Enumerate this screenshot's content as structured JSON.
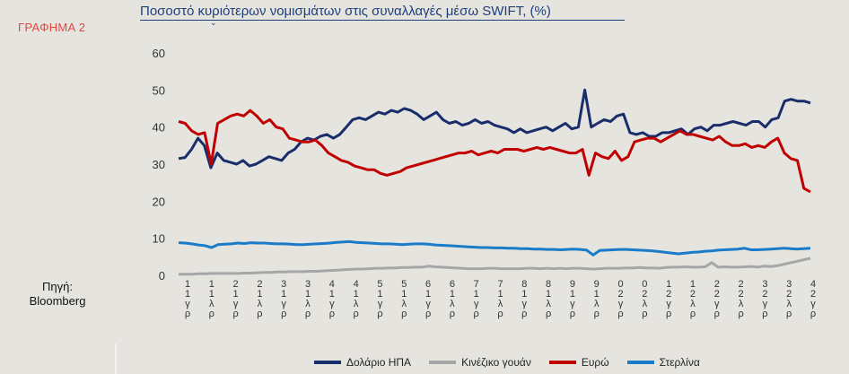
{
  "sidebar": {
    "label": "ΓΡΑΦΗΜΑ 2",
    "source_line1": "Πηγή:",
    "source_line2": "Bloomberg"
  },
  "chart_data": {
    "type": "line",
    "title": "Ποσοστό κυριότερων νομισμάτων στις συναλλαγές μέσω SWIFT, (%)",
    "xlabel": "",
    "ylabel": "",
    "ylim": [
      0,
      60
    ],
    "yticks": [
      0,
      10,
      20,
      30,
      40,
      50,
      60
    ],
    "x_tick_labels": [
      "1 Ιαν",
      "1 Ιουλ",
      "2 Ιαν",
      "2 Ιουλ",
      "3 Ιαν",
      "3 Ιουλ",
      "4 Ιαν",
      "4 Ιουλ",
      "5 Ιαν",
      "5 Ιουλ",
      "6 Ιαν",
      "6 Ιουλ",
      "7 Ιαν",
      "7 Ιουλ",
      "8 Ιαν",
      "8 Ιουλ",
      "9 Ιαν",
      "9 Ιουλ",
      "0 Ιαν",
      "0 Ιουλ",
      "1 Ιαν",
      "1 Ιουλ",
      "2 Ιαν",
      "2 Ιουλ",
      "3 Ιαν",
      "3 Ιουλ",
      "4 Ιαν"
    ],
    "x_tick_glyphs": [
      [
        "1",
        "1",
        "γ",
        "ρ"
      ],
      [
        "1",
        "1",
        "λ",
        "ρ"
      ],
      [
        "2",
        "1",
        "γ",
        "ρ"
      ],
      [
        "2",
        "1",
        "λ",
        "ρ"
      ],
      [
        "3",
        "1",
        "γ",
        "ρ"
      ],
      [
        "3",
        "1",
        "λ",
        "ρ"
      ],
      [
        "4",
        "1",
        "γ",
        "ρ"
      ],
      [
        "4",
        "1",
        "λ",
        "ρ"
      ],
      [
        "5",
        "1",
        "γ",
        "ρ"
      ],
      [
        "5",
        "1",
        "λ",
        "ρ"
      ],
      [
        "6",
        "1",
        "γ",
        "ρ"
      ],
      [
        "6",
        "1",
        "λ",
        "ρ"
      ],
      [
        "7",
        "1",
        "γ",
        "ρ"
      ],
      [
        "7",
        "1",
        "λ",
        "ρ"
      ],
      [
        "8",
        "1",
        "γ",
        "ρ"
      ],
      [
        "8",
        "1",
        "λ",
        "ρ"
      ],
      [
        "9",
        "1",
        "γ",
        "ρ"
      ],
      [
        "9",
        "1",
        "λ",
        "ρ"
      ],
      [
        "0",
        "2",
        "γ",
        "ρ"
      ],
      [
        "0",
        "2",
        "λ",
        "ρ"
      ],
      [
        "1",
        "2",
        "γ",
        "ρ"
      ],
      [
        "1",
        "2",
        "λ",
        "ρ"
      ],
      [
        "2",
        "2",
        "γ",
        "ρ"
      ],
      [
        "2",
        "2",
        "λ",
        "ρ"
      ],
      [
        "3",
        "2",
        "γ",
        "ρ"
      ],
      [
        "3",
        "2",
        "λ",
        "ρ"
      ],
      [
        "4",
        "2",
        "γ",
        "ρ"
      ]
    ],
    "grid": false,
    "legend_position": "bottom",
    "series": [
      {
        "name": "Δολάριο ΗΠΑ",
        "color": "#1a2d6b",
        "values": [
          31.5,
          31.8,
          34,
          37,
          35,
          29,
          33,
          31,
          30.5,
          30,
          31,
          29.5,
          30,
          31,
          32,
          31.5,
          31,
          33,
          34,
          36,
          37,
          36.5,
          37.5,
          38,
          37,
          38,
          40,
          42,
          42.5,
          42,
          43,
          44,
          43.5,
          44.5,
          44,
          45,
          44.5,
          43.5,
          42,
          43,
          44,
          42,
          41,
          41.5,
          40.5,
          41,
          42,
          41,
          41.5,
          40.5,
          40,
          39.5,
          38.5,
          39.5,
          38.5,
          39,
          39.5,
          40,
          39,
          40,
          41,
          39.5,
          40,
          50,
          40,
          41,
          42,
          41.5,
          43,
          43.5,
          38.5,
          38,
          38.5,
          37.5,
          37.5,
          38.5,
          38.5,
          39,
          39.5,
          38,
          39.5,
          40,
          39,
          40.5,
          40.5,
          41,
          41.5,
          41,
          40.5,
          41.5,
          41.5,
          40,
          42,
          42.5,
          47,
          47.5,
          47,
          47,
          46.5
        ]
      },
      {
        "name": "Κινέζικο γουάν",
        "color": "#a6a6a6",
        "values": [
          0.3,
          0.3,
          0.3,
          0.4,
          0.4,
          0.5,
          0.5,
          0.5,
          0.5,
          0.5,
          0.6,
          0.6,
          0.7,
          0.8,
          0.8,
          0.9,
          0.9,
          1,
          1,
          1,
          1.1,
          1.1,
          1.2,
          1.3,
          1.4,
          1.5,
          1.6,
          1.7,
          1.7,
          1.8,
          1.9,
          1.9,
          2,
          2,
          2.1,
          2.1,
          2.2,
          2.2,
          2.5,
          2.3,
          2.2,
          2.1,
          2,
          1.9,
          1.8,
          1.8,
          1.8,
          1.9,
          1.9,
          1.8,
          1.8,
          1.8,
          1.8,
          1.9,
          1.9,
          1.8,
          1.9,
          1.8,
          1.9,
          1.8,
          1.9,
          1.9,
          1.8,
          1.7,
          1.8,
          1.9,
          1.9,
          1.9,
          2,
          2,
          2.1,
          2,
          2,
          1.9,
          2.1,
          2.2,
          2.2,
          2.3,
          2.2,
          2.2,
          2.3,
          3.4,
          2.2,
          2.3,
          2.2,
          2.2,
          2.3,
          2.4,
          2.2,
          2.5,
          2.4,
          2.6,
          3,
          3.4,
          3.8,
          4.2,
          4.6
        ]
      },
      {
        "name": "Ευρώ",
        "color": "#c00000",
        "values": [
          41.5,
          41,
          39,
          38,
          38.5,
          30,
          41,
          42,
          43,
          43.5,
          43,
          44.5,
          43,
          41,
          42,
          40,
          39.5,
          37,
          36.5,
          36,
          36,
          36.5,
          35,
          33,
          32,
          31,
          30.5,
          29.5,
          29,
          28.5,
          28.5,
          27.5,
          27,
          27.5,
          28,
          29,
          29.5,
          30,
          30.5,
          31,
          31.5,
          32,
          32.5,
          33,
          33,
          33.5,
          32.5,
          33,
          33.5,
          33,
          34,
          34,
          34,
          33.5,
          34,
          34.5,
          34,
          34.5,
          34,
          33.5,
          33,
          33,
          34,
          27,
          33,
          32,
          31.5,
          33.5,
          31,
          32,
          36,
          36.5,
          37,
          37,
          36,
          37,
          38,
          39,
          38,
          38,
          37.5,
          37,
          36.5,
          37.5,
          36,
          35,
          35,
          35.5,
          34.5,
          35,
          34.5,
          36,
          37,
          33,
          31.5,
          31,
          23.5,
          22.5
        ]
      },
      {
        "name": "Στερλίνα",
        "color": "#1a7cc9",
        "values": [
          8.8,
          8.7,
          8.5,
          8.2,
          8,
          7.5,
          8.3,
          8.4,
          8.5,
          8.7,
          8.6,
          8.8,
          8.7,
          8.7,
          8.6,
          8.5,
          8.5,
          8.4,
          8.3,
          8.3,
          8.4,
          8.5,
          8.6,
          8.7,
          8.9,
          9,
          9.1,
          8.9,
          8.8,
          8.7,
          8.6,
          8.5,
          8.5,
          8.4,
          8.3,
          8.4,
          8.5,
          8.5,
          8.4,
          8.2,
          8.1,
          8,
          7.9,
          7.8,
          7.7,
          7.6,
          7.5,
          7.5,
          7.4,
          7.4,
          7.3,
          7.3,
          7.2,
          7.2,
          7.1,
          7.1,
          7,
          7,
          6.9,
          7,
          7.1,
          7,
          6.8,
          5.5,
          6.7,
          6.8,
          6.9,
          7,
          7,
          6.9,
          6.8,
          6.7,
          6.6,
          6.4,
          6.2,
          6,
          5.8,
          6,
          6.2,
          6.3,
          6.5,
          6.6,
          6.8,
          6.9,
          7,
          7.1,
          7.3,
          6.9,
          6.9,
          7,
          7.1,
          7.2,
          7.3,
          7.2,
          7.1,
          7.2,
          7.3
        ]
      }
    ]
  }
}
